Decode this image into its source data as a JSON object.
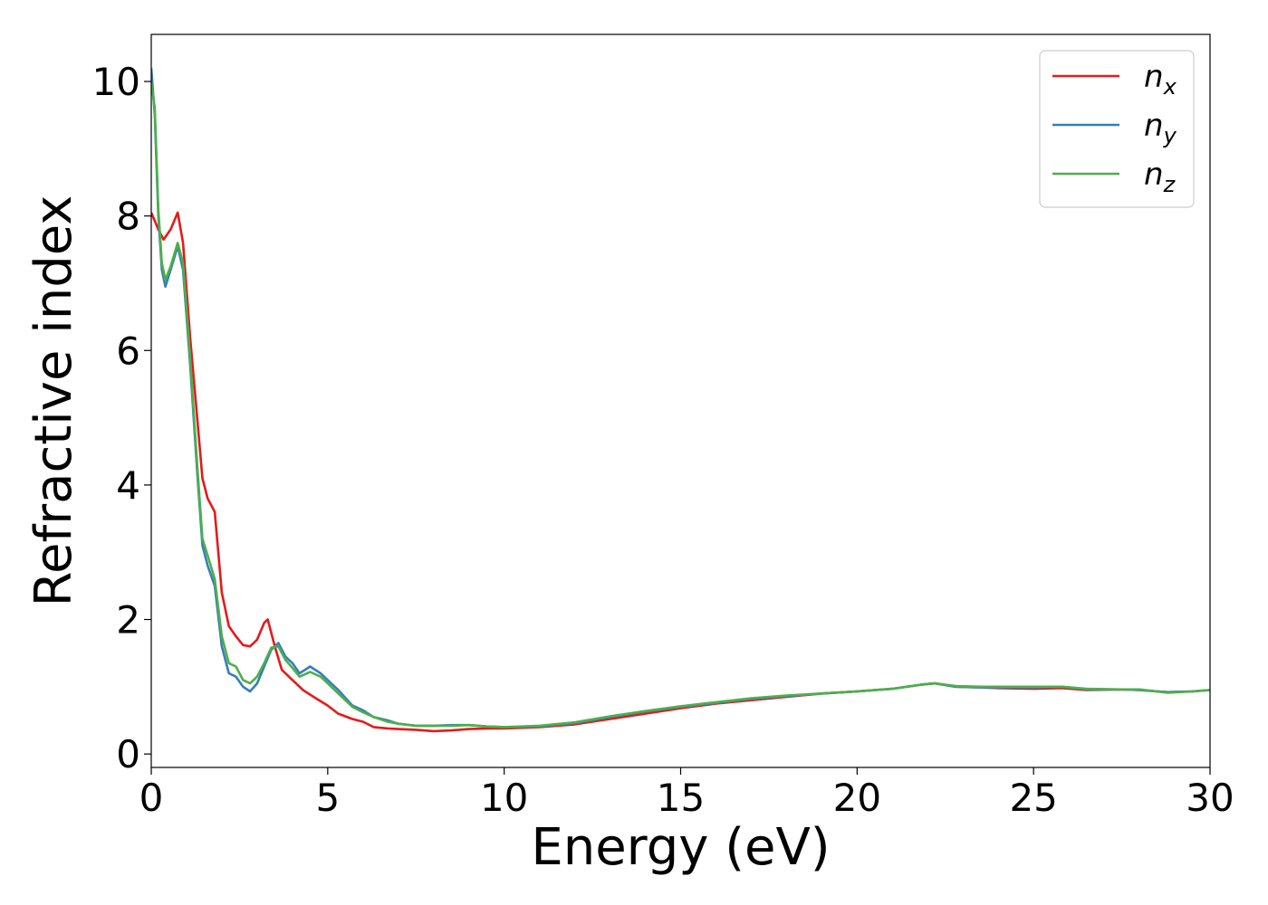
{
  "chart_data": {
    "type": "line",
    "title": "",
    "xlabel": "Energy (eV)",
    "ylabel": "Refractive index",
    "xlim": [
      0,
      30
    ],
    "ylim": [
      -0.2,
      10.7
    ],
    "xticks": [
      0,
      5,
      10,
      15,
      20,
      25,
      30
    ],
    "yticks": [
      0,
      2,
      4,
      6,
      8,
      10
    ],
    "grid": false,
    "legend_position": "top-right",
    "series": [
      {
        "name": "n",
        "subscript": "x",
        "color": "#e41a1c",
        "x": [
          0,
          0.2,
          0.35,
          0.55,
          0.75,
          0.9,
          1.1,
          1.3,
          1.45,
          1.6,
          1.8,
          2.0,
          2.2,
          2.4,
          2.6,
          2.8,
          3.0,
          3.2,
          3.3,
          3.5,
          3.7,
          4.0,
          4.3,
          4.6,
          5.0,
          5.3,
          5.7,
          6.0,
          6.3,
          6.7,
          7.0,
          7.5,
          8.0,
          8.5,
          9.0,
          9.5,
          10.0,
          11.0,
          12.0,
          13.0,
          14.0,
          15.0,
          16.0,
          17.0,
          18.0,
          19.0,
          20.0,
          21.0,
          21.8,
          22.2,
          22.8,
          23.5,
          24.0,
          25.0,
          25.8,
          26.5,
          27.5,
          28.0,
          28.8,
          29.5,
          30.0
        ],
        "y": [
          8.05,
          7.8,
          7.65,
          7.8,
          8.05,
          7.6,
          6.2,
          5.0,
          4.1,
          3.8,
          3.6,
          2.4,
          1.9,
          1.75,
          1.62,
          1.6,
          1.7,
          1.95,
          2.0,
          1.6,
          1.25,
          1.1,
          0.95,
          0.85,
          0.72,
          0.6,
          0.52,
          0.48,
          0.4,
          0.38,
          0.37,
          0.36,
          0.34,
          0.35,
          0.37,
          0.38,
          0.38,
          0.4,
          0.44,
          0.52,
          0.6,
          0.68,
          0.75,
          0.8,
          0.85,
          0.9,
          0.93,
          0.97,
          1.03,
          1.05,
          1.0,
          0.99,
          0.98,
          0.97,
          0.98,
          0.95,
          0.96,
          0.95,
          0.92,
          0.93,
          0.95
        ]
      },
      {
        "name": "n",
        "subscript": "y",
        "color": "#377eb8",
        "x": [
          0,
          0.1,
          0.2,
          0.3,
          0.4,
          0.55,
          0.75,
          0.9,
          1.1,
          1.3,
          1.45,
          1.6,
          1.8,
          2.0,
          2.2,
          2.4,
          2.6,
          2.8,
          3.0,
          3.2,
          3.4,
          3.6,
          3.8,
          4.0,
          4.2,
          4.5,
          4.8,
          5.0,
          5.3,
          5.7,
          6.0,
          6.3,
          6.7,
          7.0,
          7.5,
          8.0,
          8.5,
          9.0,
          9.5,
          10.0,
          11.0,
          12.0,
          13.0,
          14.0,
          15.0,
          16.0,
          17.0,
          18.0,
          19.0,
          20.0,
          21.0,
          21.8,
          22.2,
          22.8,
          23.5,
          24.0,
          25.0,
          25.8,
          26.5,
          27.5,
          28.0,
          28.8,
          29.5,
          30.0
        ],
        "y": [
          10.2,
          9.5,
          8.0,
          7.2,
          6.95,
          7.2,
          7.55,
          7.2,
          5.8,
          4.2,
          3.1,
          2.8,
          2.5,
          1.6,
          1.2,
          1.15,
          1.0,
          0.93,
          1.05,
          1.3,
          1.55,
          1.65,
          1.45,
          1.35,
          1.2,
          1.3,
          1.2,
          1.1,
          0.95,
          0.72,
          0.65,
          0.55,
          0.5,
          0.45,
          0.42,
          0.42,
          0.43,
          0.43,
          0.41,
          0.4,
          0.41,
          0.46,
          0.55,
          0.63,
          0.7,
          0.76,
          0.82,
          0.86,
          0.9,
          0.93,
          0.97,
          1.03,
          1.05,
          1.0,
          0.99,
          0.99,
          0.99,
          1.0,
          0.96,
          0.96,
          0.95,
          0.92,
          0.93,
          0.95
        ]
      },
      {
        "name": "n",
        "subscript": "z",
        "color": "#4daf4a",
        "x": [
          0,
          0.1,
          0.2,
          0.3,
          0.4,
          0.55,
          0.75,
          0.9,
          1.1,
          1.3,
          1.45,
          1.6,
          1.8,
          2.0,
          2.2,
          2.4,
          2.6,
          2.8,
          3.0,
          3.2,
          3.4,
          3.6,
          3.8,
          4.0,
          4.2,
          4.5,
          4.8,
          5.0,
          5.3,
          5.7,
          6.0,
          6.3,
          6.7,
          7.0,
          7.5,
          8.0,
          8.5,
          9.0,
          9.5,
          10.0,
          11.0,
          12.0,
          13.0,
          14.0,
          15.0,
          16.0,
          17.0,
          18.0,
          19.0,
          20.0,
          21.0,
          21.8,
          22.2,
          22.8,
          23.5,
          24.0,
          25.0,
          25.8,
          26.5,
          27.5,
          28.0,
          28.8,
          29.5,
          30.0
        ],
        "y": [
          10.0,
          9.6,
          8.1,
          7.3,
          7.05,
          7.25,
          7.6,
          7.3,
          5.9,
          4.3,
          3.2,
          2.95,
          2.6,
          1.75,
          1.35,
          1.3,
          1.1,
          1.05,
          1.15,
          1.35,
          1.58,
          1.6,
          1.4,
          1.28,
          1.15,
          1.22,
          1.15,
          1.05,
          0.9,
          0.7,
          0.62,
          0.55,
          0.48,
          0.45,
          0.42,
          0.42,
          0.42,
          0.43,
          0.41,
          0.4,
          0.42,
          0.47,
          0.56,
          0.64,
          0.71,
          0.77,
          0.83,
          0.87,
          0.9,
          0.93,
          0.97,
          1.03,
          1.05,
          1.01,
          1.0,
          1.0,
          1.0,
          1.0,
          0.97,
          0.96,
          0.96,
          0.91,
          0.93,
          0.95
        ]
      }
    ]
  }
}
